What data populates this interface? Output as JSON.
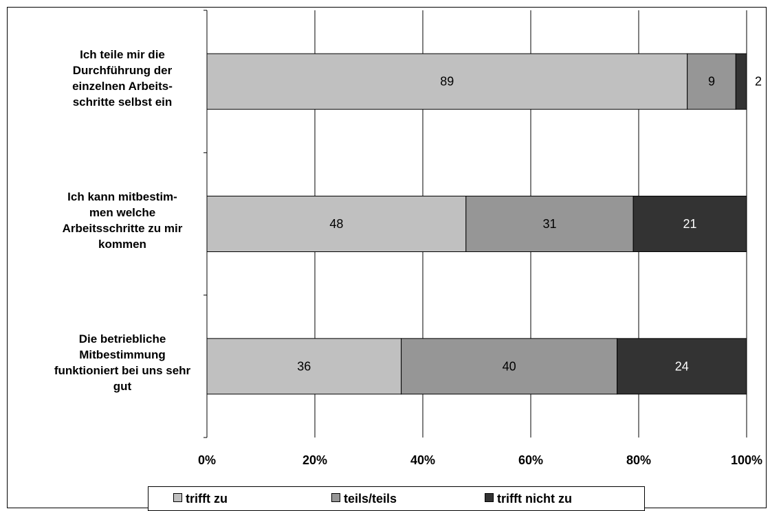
{
  "chart_data": {
    "type": "bar",
    "orientation": "horizontal",
    "stacked": true,
    "categories": [
      "Ich teile mir die Durchführung der einzelnen Arbeits-schritte selbst ein",
      "Ich kann mitbestim-men welche Arbeitsschritte zu mir kommen",
      "Die betriebliche Mitbestimmung funktioniert bei uns sehr gut"
    ],
    "category_lines": [
      [
        "Ich teile mir die",
        "Durchführung der",
        "einzelnen Arbeits-",
        "schritte selbst ein"
      ],
      [
        "Ich kann mitbestim-",
        "men welche",
        "Arbeitsschritte zu mir",
        "kommen"
      ],
      [
        "Die betriebliche",
        "Mitbestimmung",
        "funktioniert bei uns sehr",
        "gut"
      ]
    ],
    "series": [
      {
        "name": "trifft zu",
        "values": [
          89,
          48,
          36
        ],
        "color": "#c0c0c0"
      },
      {
        "name": "teils/teils",
        "values": [
          9,
          31,
          40
        ],
        "color": "#969696"
      },
      {
        "name": "trifft nicht zu",
        "values": [
          2,
          21,
          24
        ],
        "color": "#333333"
      }
    ],
    "xlim": [
      0,
      100
    ],
    "x_ticks": [
      "0%",
      "20%",
      "40%",
      "60%",
      "80%",
      "100%"
    ],
    "grid": true,
    "legend_position": "bottom"
  }
}
